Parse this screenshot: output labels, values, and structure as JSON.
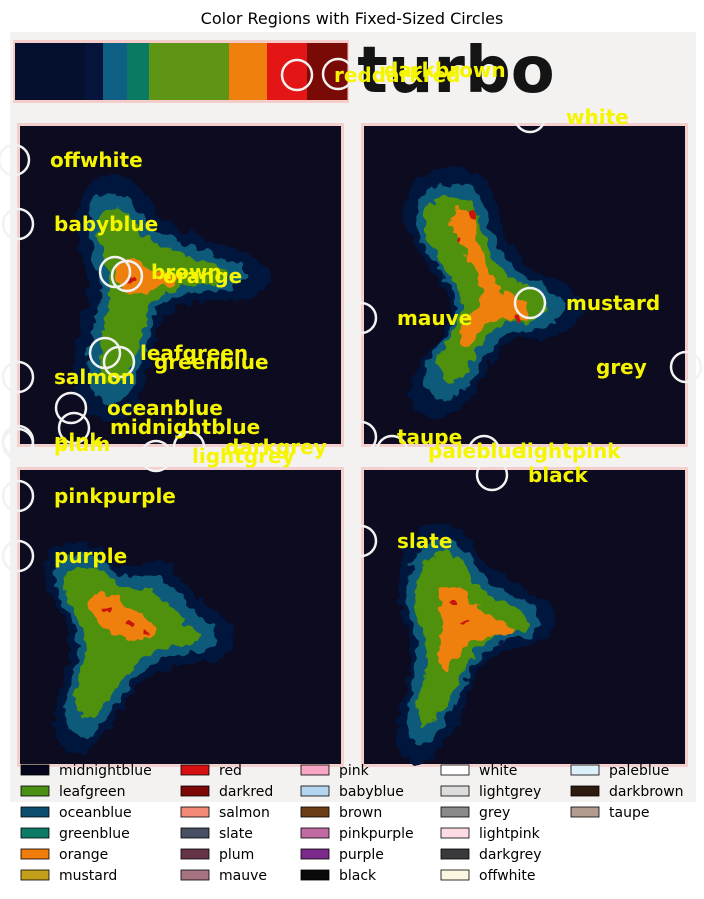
{
  "chart_data": {
    "type": "heatmap",
    "title": "Color Regions with Fixed-Sized Circles",
    "colormap_label": "turbo",
    "panel_colors": {
      "background": "#0d0b1f",
      "outer": "#06123e",
      "mid": "#0a5a7a",
      "green": "#4f9010",
      "orange": "#f0800e",
      "red": "#c81210",
      "darkred": "#7d0a06",
      "frame": "#f2f0ee"
    },
    "colorbar_bands": [
      "#05102e",
      "#06133a",
      "#0f5f85",
      "#0a7a63",
      "#5e9515",
      "#f0800e",
      "#e41515",
      "#7a0a05"
    ],
    "circle_labels": [
      "reddarkred",
      "darkbrown",
      "white",
      "offwhite",
      "babyblue",
      "brown",
      "orange",
      "mustard",
      "mauve",
      "grey",
      "leafgreen",
      "greenblue",
      "salmon",
      "oceanblue",
      "midnightblue",
      "taupe",
      "paleblue",
      "lightpink",
      "plum",
      "pink",
      "darkgrey",
      "lightgrey",
      "black",
      "pinkpurple",
      "slate",
      "purple"
    ],
    "legend": [
      {
        "name": "midnightblue",
        "color": "#05061e"
      },
      {
        "name": "leafgreen",
        "color": "#4b8f14"
      },
      {
        "name": "oceanblue",
        "color": "#0b4d6e"
      },
      {
        "name": "greenblue",
        "color": "#0c7a64"
      },
      {
        "name": "orange",
        "color": "#ef7c0b"
      },
      {
        "name": "mustard",
        "color": "#c4a01a"
      },
      {
        "name": "red",
        "color": "#d60f10"
      },
      {
        "name": "darkred",
        "color": "#7c0707"
      },
      {
        "name": "salmon",
        "color": "#f38a78"
      },
      {
        "name": "slate",
        "color": "#4a5063"
      },
      {
        "name": "plum",
        "color": "#653449"
      },
      {
        "name": "mauve",
        "color": "#a67480"
      },
      {
        "name": "pink",
        "color": "#f7a6c4"
      },
      {
        "name": "babyblue",
        "color": "#b5d5ee"
      },
      {
        "name": "brown",
        "color": "#6b3e15"
      },
      {
        "name": "pinkpurple",
        "color": "#c26aa2"
      },
      {
        "name": "purple",
        "color": "#7b2a8c"
      },
      {
        "name": "black",
        "color": "#0a0a0a"
      },
      {
        "name": "white",
        "color": "#ffffff"
      },
      {
        "name": "lightgrey",
        "color": "#dcdcdc"
      },
      {
        "name": "grey",
        "color": "#8a8a8a"
      },
      {
        "name": "lightpink",
        "color": "#fcdbe2"
      },
      {
        "name": "darkgrey",
        "color": "#3a3a3e"
      },
      {
        "name": "offwhite",
        "color": "#fbf6e0"
      },
      {
        "name": "paleblue",
        "color": "#dcf0fa"
      },
      {
        "name": "darkbrown",
        "color": "#2e1b10"
      },
      {
        "name": "taupe",
        "color": "#b49b91"
      }
    ]
  }
}
